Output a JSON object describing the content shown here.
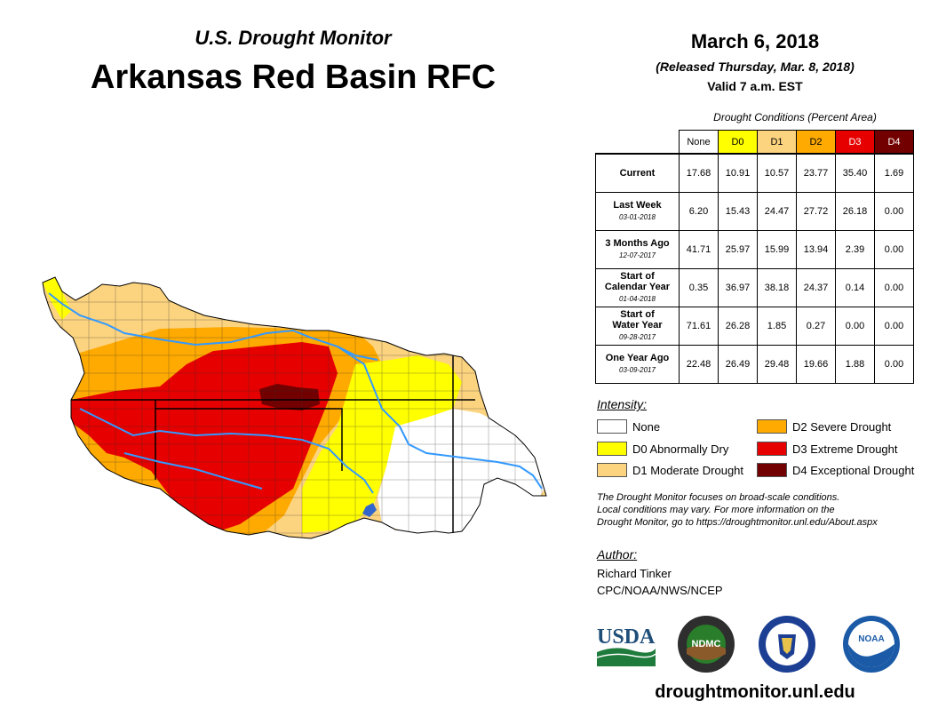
{
  "header": {
    "subtitle": "U.S. Drought Monitor",
    "title": "Arkansas Red Basin RFC",
    "date": "March 6, 2018",
    "released": "(Released Thursday, Mar. 8, 2018)",
    "valid": "Valid 7 a.m. EST"
  },
  "table": {
    "caption": "Drought Conditions (Percent Area)",
    "columns": [
      "None",
      "D0",
      "D1",
      "D2",
      "D3",
      "D4"
    ],
    "rows": [
      {
        "label": "Current",
        "label2": "",
        "date": "",
        "values": [
          "17.68",
          "10.91",
          "10.57",
          "23.77",
          "35.40",
          "1.69"
        ]
      },
      {
        "label": "Last Week",
        "label2": "",
        "date": "03-01-2018",
        "values": [
          "6.20",
          "15.43",
          "24.47",
          "27.72",
          "26.18",
          "0.00"
        ]
      },
      {
        "label": "3 Months Ago",
        "label2": "",
        "date": "12-07-2017",
        "values": [
          "41.71",
          "25.97",
          "15.99",
          "13.94",
          "2.39",
          "0.00"
        ]
      },
      {
        "label": "Start of",
        "label2": "Calendar Year",
        "date": "01-04-2018",
        "values": [
          "0.35",
          "36.97",
          "38.18",
          "24.37",
          "0.14",
          "0.00"
        ]
      },
      {
        "label": "Start of",
        "label2": "Water Year",
        "date": "09-28-2017",
        "values": [
          "71.61",
          "26.28",
          "1.85",
          "0.27",
          "0.00",
          "0.00"
        ]
      },
      {
        "label": "One Year Ago",
        "label2": "",
        "date": "03-09-2017",
        "values": [
          "22.48",
          "26.49",
          "29.48",
          "19.66",
          "1.88",
          "0.00"
        ]
      }
    ]
  },
  "legend": {
    "title": "Intensity:",
    "items": [
      {
        "label": "None",
        "color": "#ffffff"
      },
      {
        "label": "D0 Abnormally Dry",
        "color": "#ffff00"
      },
      {
        "label": "D1 Moderate Drought",
        "color": "#fcd37f"
      },
      {
        "label": "D2 Severe Drought",
        "color": "#ffaa00"
      },
      {
        "label": "D3 Extreme Drought",
        "color": "#e60000"
      },
      {
        "label": "D4 Exceptional Drought",
        "color": "#730000"
      }
    ]
  },
  "note": {
    "line1": "The Drought Monitor focuses on broad-scale conditions.",
    "line2": "Local conditions may vary. For more information on the",
    "line3": "Drought Monitor, go to https://droughtmonitor.unl.edu/About.aspx"
  },
  "author": {
    "title": "Author:",
    "name": "Richard Tinker",
    "org": "CPC/NOAA/NWS/NCEP"
  },
  "logos": {
    "usda": "USDA",
    "ndmc": "NDMC",
    "noaa": "NOAA"
  },
  "website": "droughtmonitor.unl.edu",
  "colors": {
    "none": "#ffffff",
    "d0": "#ffff00",
    "d1": "#fcd37f",
    "d2": "#ffaa00",
    "d3": "#e60000",
    "d4": "#730000",
    "river": "#3399ff"
  }
}
